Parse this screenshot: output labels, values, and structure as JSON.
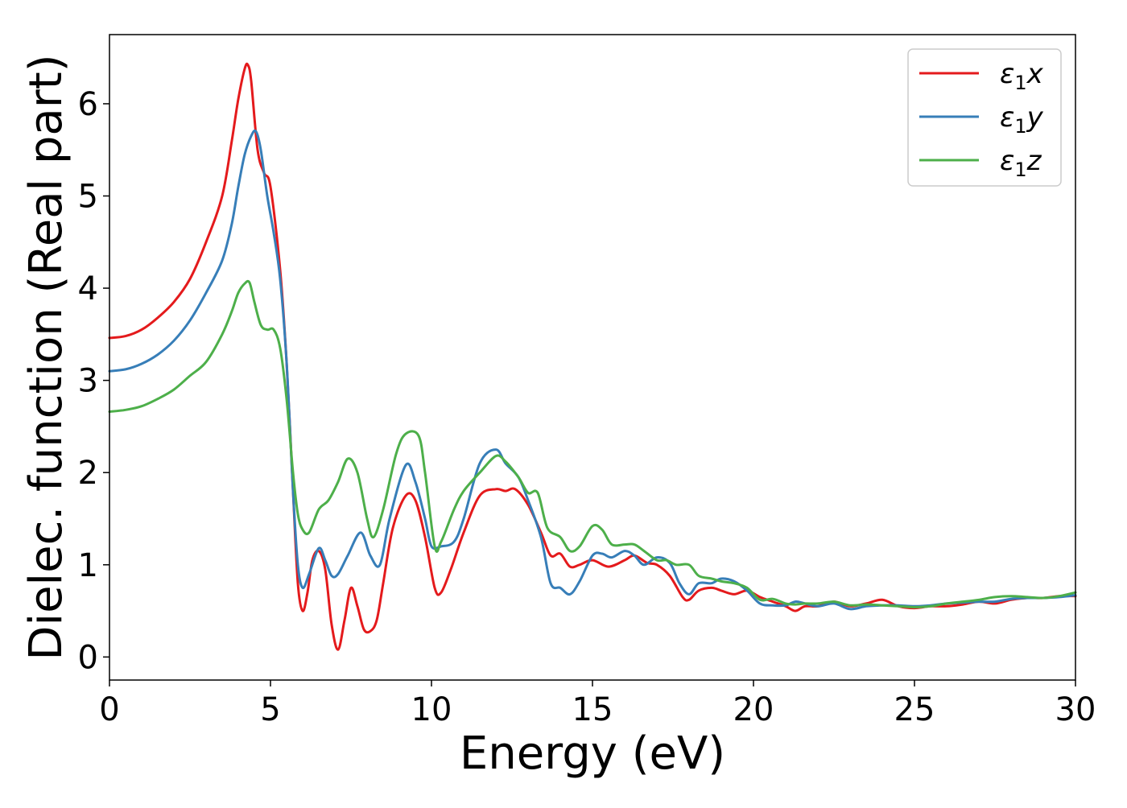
{
  "chart_data": {
    "type": "line",
    "xlabel": "Energy (eV)",
    "ylabel": "Dielec. function (Real part)",
    "xlim": [
      0,
      30
    ],
    "ylim": [
      -0.25,
      6.75
    ],
    "xticks": [
      0,
      5,
      10,
      15,
      20,
      25,
      30
    ],
    "yticks": [
      0,
      1,
      2,
      3,
      4,
      5,
      6
    ],
    "grid": false,
    "legend": "top-right",
    "series": [
      {
        "name": "ε₁x",
        "legend": {
          "base": "ε",
          "sub": "1",
          "suffix": "x"
        },
        "color": "#e41a1c",
        "points": [
          [
            0,
            3.46
          ],
          [
            0.5,
            3.48
          ],
          [
            1,
            3.55
          ],
          [
            1.5,
            3.68
          ],
          [
            2,
            3.85
          ],
          [
            2.5,
            4.1
          ],
          [
            3,
            4.5
          ],
          [
            3.5,
            5.0
          ],
          [
            3.8,
            5.6
          ],
          [
            4.0,
            6.05
          ],
          [
            4.2,
            6.38
          ],
          [
            4.3,
            6.42
          ],
          [
            4.4,
            6.25
          ],
          [
            4.6,
            5.5
          ],
          [
            4.8,
            5.25
          ],
          [
            5.0,
            5.1
          ],
          [
            5.3,
            4.2
          ],
          [
            5.5,
            3.2
          ],
          [
            5.7,
            1.8
          ],
          [
            5.85,
            0.8
          ],
          [
            6.0,
            0.5
          ],
          [
            6.15,
            0.7
          ],
          [
            6.3,
            1.05
          ],
          [
            6.5,
            1.15
          ],
          [
            6.7,
            0.95
          ],
          [
            6.9,
            0.35
          ],
          [
            7.1,
            0.08
          ],
          [
            7.3,
            0.4
          ],
          [
            7.5,
            0.75
          ],
          [
            7.7,
            0.55
          ],
          [
            7.9,
            0.3
          ],
          [
            8.1,
            0.28
          ],
          [
            8.3,
            0.4
          ],
          [
            8.5,
            0.8
          ],
          [
            8.8,
            1.4
          ],
          [
            9.2,
            1.75
          ],
          [
            9.5,
            1.7
          ],
          [
            9.8,
            1.3
          ],
          [
            10.1,
            0.75
          ],
          [
            10.3,
            0.7
          ],
          [
            10.6,
            0.95
          ],
          [
            11.0,
            1.35
          ],
          [
            11.5,
            1.75
          ],
          [
            12.0,
            1.82
          ],
          [
            12.3,
            1.8
          ],
          [
            12.6,
            1.82
          ],
          [
            13.0,
            1.65
          ],
          [
            13.4,
            1.35
          ],
          [
            13.7,
            1.1
          ],
          [
            14.0,
            1.12
          ],
          [
            14.3,
            0.98
          ],
          [
            14.6,
            1.0
          ],
          [
            15.0,
            1.05
          ],
          [
            15.5,
            0.98
          ],
          [
            16.0,
            1.05
          ],
          [
            16.3,
            1.1
          ],
          [
            16.7,
            1.02
          ],
          [
            17.0,
            1.0
          ],
          [
            17.4,
            0.88
          ],
          [
            17.8,
            0.65
          ],
          [
            18.0,
            0.62
          ],
          [
            18.3,
            0.72
          ],
          [
            18.7,
            0.75
          ],
          [
            19.0,
            0.72
          ],
          [
            19.4,
            0.68
          ],
          [
            19.8,
            0.72
          ],
          [
            20.2,
            0.65
          ],
          [
            20.6,
            0.6
          ],
          [
            21.0,
            0.55
          ],
          [
            21.3,
            0.5
          ],
          [
            21.6,
            0.55
          ],
          [
            22.0,
            0.55
          ],
          [
            22.5,
            0.6
          ],
          [
            23.0,
            0.55
          ],
          [
            23.5,
            0.58
          ],
          [
            24.0,
            0.62
          ],
          [
            24.5,
            0.55
          ],
          [
            25.0,
            0.53
          ],
          [
            25.5,
            0.55
          ],
          [
            26.0,
            0.55
          ],
          [
            26.5,
            0.57
          ],
          [
            27.0,
            0.6
          ],
          [
            27.5,
            0.58
          ],
          [
            28.0,
            0.62
          ],
          [
            28.5,
            0.64
          ],
          [
            29.0,
            0.64
          ],
          [
            29.5,
            0.66
          ],
          [
            30.0,
            0.66
          ]
        ]
      },
      {
        "name": "ε₁y",
        "legend": {
          "base": "ε",
          "sub": "1",
          "suffix": "y"
        },
        "color": "#377eb8",
        "points": [
          [
            0,
            3.1
          ],
          [
            0.5,
            3.12
          ],
          [
            1,
            3.18
          ],
          [
            1.5,
            3.28
          ],
          [
            2,
            3.43
          ],
          [
            2.5,
            3.65
          ],
          [
            3,
            3.95
          ],
          [
            3.5,
            4.3
          ],
          [
            3.8,
            4.7
          ],
          [
            4.0,
            5.1
          ],
          [
            4.2,
            5.45
          ],
          [
            4.4,
            5.65
          ],
          [
            4.55,
            5.7
          ],
          [
            4.7,
            5.5
          ],
          [
            4.9,
            5.0
          ],
          [
            5.1,
            4.6
          ],
          [
            5.3,
            4.1
          ],
          [
            5.5,
            3.2
          ],
          [
            5.7,
            1.8
          ],
          [
            5.85,
            1.0
          ],
          [
            6.0,
            0.75
          ],
          [
            6.2,
            0.9
          ],
          [
            6.5,
            1.18
          ],
          [
            6.7,
            1.05
          ],
          [
            6.9,
            0.88
          ],
          [
            7.1,
            0.9
          ],
          [
            7.4,
            1.1
          ],
          [
            7.8,
            1.35
          ],
          [
            8.1,
            1.1
          ],
          [
            8.4,
            1.0
          ],
          [
            8.7,
            1.5
          ],
          [
            9.2,
            2.08
          ],
          [
            9.5,
            1.9
          ],
          [
            9.8,
            1.5
          ],
          [
            10.0,
            1.2
          ],
          [
            10.3,
            1.2
          ],
          [
            10.7,
            1.25
          ],
          [
            11.0,
            1.5
          ],
          [
            11.5,
            2.1
          ],
          [
            12.0,
            2.25
          ],
          [
            12.3,
            2.1
          ],
          [
            12.7,
            1.95
          ],
          [
            13.0,
            1.7
          ],
          [
            13.4,
            1.3
          ],
          [
            13.7,
            0.8
          ],
          [
            14.0,
            0.75
          ],
          [
            14.3,
            0.68
          ],
          [
            14.6,
            0.82
          ],
          [
            15.0,
            1.1
          ],
          [
            15.3,
            1.12
          ],
          [
            15.6,
            1.08
          ],
          [
            16.0,
            1.15
          ],
          [
            16.3,
            1.1
          ],
          [
            16.6,
            1.0
          ],
          [
            17.0,
            1.08
          ],
          [
            17.4,
            1.02
          ],
          [
            17.7,
            0.8
          ],
          [
            18.0,
            0.68
          ],
          [
            18.3,
            0.8
          ],
          [
            18.7,
            0.8
          ],
          [
            19.0,
            0.85
          ],
          [
            19.4,
            0.82
          ],
          [
            19.8,
            0.72
          ],
          [
            20.2,
            0.58
          ],
          [
            20.6,
            0.56
          ],
          [
            21.0,
            0.56
          ],
          [
            21.3,
            0.6
          ],
          [
            21.6,
            0.58
          ],
          [
            22.0,
            0.55
          ],
          [
            22.5,
            0.58
          ],
          [
            23.0,
            0.52
          ],
          [
            23.5,
            0.55
          ],
          [
            24.0,
            0.56
          ],
          [
            24.5,
            0.56
          ],
          [
            25.0,
            0.55
          ],
          [
            25.5,
            0.56
          ],
          [
            26.0,
            0.58
          ],
          [
            26.5,
            0.59
          ],
          [
            27.0,
            0.6
          ],
          [
            27.5,
            0.6
          ],
          [
            28.0,
            0.63
          ],
          [
            28.5,
            0.64
          ],
          [
            29.0,
            0.64
          ],
          [
            29.5,
            0.65
          ],
          [
            30.0,
            0.67
          ]
        ]
      },
      {
        "name": "ε₁z",
        "legend": {
          "base": "ε",
          "sub": "1",
          "suffix": "z"
        },
        "color": "#4daf4a",
        "points": [
          [
            0,
            2.66
          ],
          [
            0.5,
            2.68
          ],
          [
            1,
            2.72
          ],
          [
            1.5,
            2.8
          ],
          [
            2,
            2.9
          ],
          [
            2.5,
            3.05
          ],
          [
            3,
            3.2
          ],
          [
            3.5,
            3.5
          ],
          [
            3.8,
            3.75
          ],
          [
            4.0,
            3.95
          ],
          [
            4.2,
            4.05
          ],
          [
            4.35,
            4.06
          ],
          [
            4.5,
            3.85
          ],
          [
            4.7,
            3.6
          ],
          [
            4.9,
            3.55
          ],
          [
            5.1,
            3.55
          ],
          [
            5.3,
            3.35
          ],
          [
            5.5,
            2.8
          ],
          [
            5.7,
            2.0
          ],
          [
            5.85,
            1.55
          ],
          [
            6.0,
            1.38
          ],
          [
            6.2,
            1.35
          ],
          [
            6.5,
            1.6
          ],
          [
            6.8,
            1.7
          ],
          [
            7.1,
            1.9
          ],
          [
            7.4,
            2.15
          ],
          [
            7.7,
            2.0
          ],
          [
            8.0,
            1.5
          ],
          [
            8.2,
            1.3
          ],
          [
            8.5,
            1.6
          ],
          [
            8.9,
            2.2
          ],
          [
            9.2,
            2.42
          ],
          [
            9.6,
            2.4
          ],
          [
            9.8,
            2.0
          ],
          [
            10.1,
            1.2
          ],
          [
            10.3,
            1.25
          ],
          [
            10.7,
            1.6
          ],
          [
            11.0,
            1.8
          ],
          [
            11.5,
            2.0
          ],
          [
            12.0,
            2.18
          ],
          [
            12.3,
            2.12
          ],
          [
            12.7,
            1.95
          ],
          [
            13.0,
            1.78
          ],
          [
            13.3,
            1.78
          ],
          [
            13.6,
            1.4
          ],
          [
            14.0,
            1.3
          ],
          [
            14.3,
            1.15
          ],
          [
            14.6,
            1.2
          ],
          [
            15.0,
            1.42
          ],
          [
            15.3,
            1.38
          ],
          [
            15.6,
            1.22
          ],
          [
            16.0,
            1.22
          ],
          [
            16.3,
            1.22
          ],
          [
            16.6,
            1.15
          ],
          [
            17.0,
            1.05
          ],
          [
            17.3,
            1.05
          ],
          [
            17.6,
            1.0
          ],
          [
            18.0,
            1.0
          ],
          [
            18.3,
            0.88
          ],
          [
            18.7,
            0.85
          ],
          [
            19.0,
            0.82
          ],
          [
            19.4,
            0.8
          ],
          [
            19.8,
            0.75
          ],
          [
            20.2,
            0.62
          ],
          [
            20.6,
            0.63
          ],
          [
            21.0,
            0.58
          ],
          [
            21.3,
            0.57
          ],
          [
            21.6,
            0.58
          ],
          [
            22.0,
            0.58
          ],
          [
            22.5,
            0.6
          ],
          [
            23.0,
            0.56
          ],
          [
            23.5,
            0.57
          ],
          [
            24.0,
            0.56
          ],
          [
            24.5,
            0.55
          ],
          [
            25.0,
            0.54
          ],
          [
            25.5,
            0.55
          ],
          [
            26.0,
            0.58
          ],
          [
            26.5,
            0.6
          ],
          [
            27.0,
            0.62
          ],
          [
            27.5,
            0.65
          ],
          [
            28.0,
            0.66
          ],
          [
            28.5,
            0.65
          ],
          [
            29.0,
            0.64
          ],
          [
            29.5,
            0.66
          ],
          [
            30.0,
            0.7
          ]
        ]
      }
    ]
  }
}
